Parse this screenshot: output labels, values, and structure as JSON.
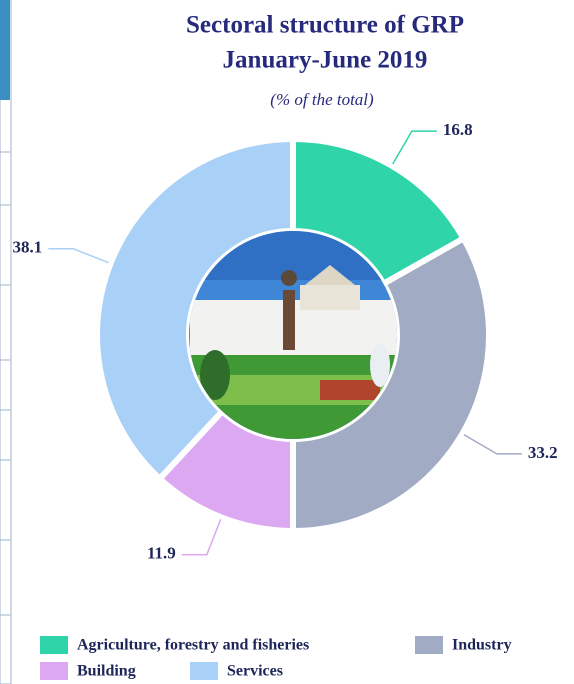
{
  "chart_data": {
    "type": "donut",
    "title": "Sectoral structure of GRP",
    "subtitle": "January-June 2019",
    "note": "(% of the total)",
    "categories": [
      "Agriculture, forestry and fisheries",
      "Industry",
      "Building",
      "Services"
    ],
    "values": [
      16.8,
      33.2,
      11.9,
      38.1
    ],
    "colors": [
      "#2fd4a9",
      "#a1abc3",
      "#dca8f2",
      "#a9d1f7"
    ]
  }
}
